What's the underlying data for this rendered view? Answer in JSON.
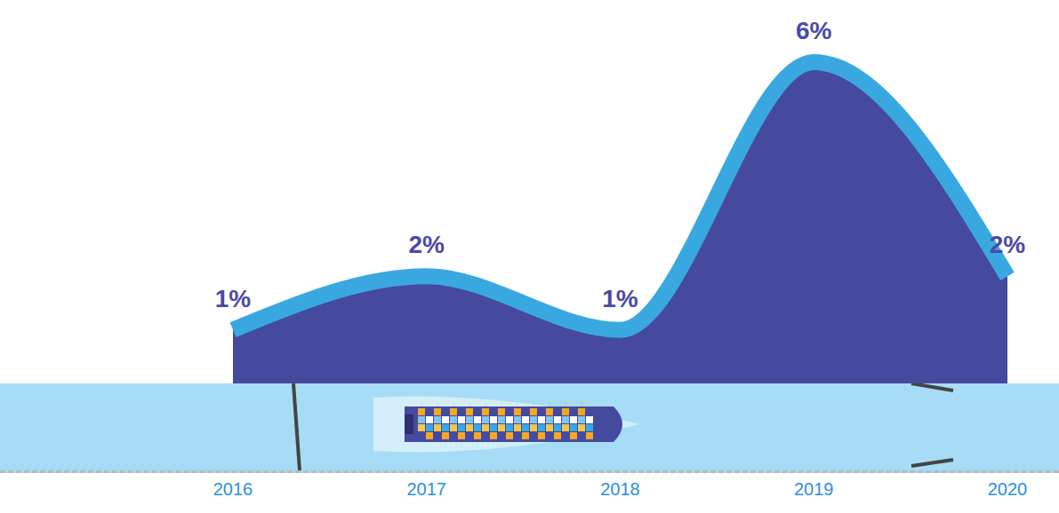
{
  "chart_data": {
    "type": "area",
    "categories": [
      "2016",
      "2017",
      "2018",
      "2019",
      "2020"
    ],
    "values": [
      1,
      2,
      1,
      6,
      2
    ],
    "value_labels": [
      "1%",
      "2%",
      "1%",
      "6%",
      "2%"
    ],
    "color": "#454a9e",
    "data_labels": true,
    "tick_labels": "x"
  }
}
